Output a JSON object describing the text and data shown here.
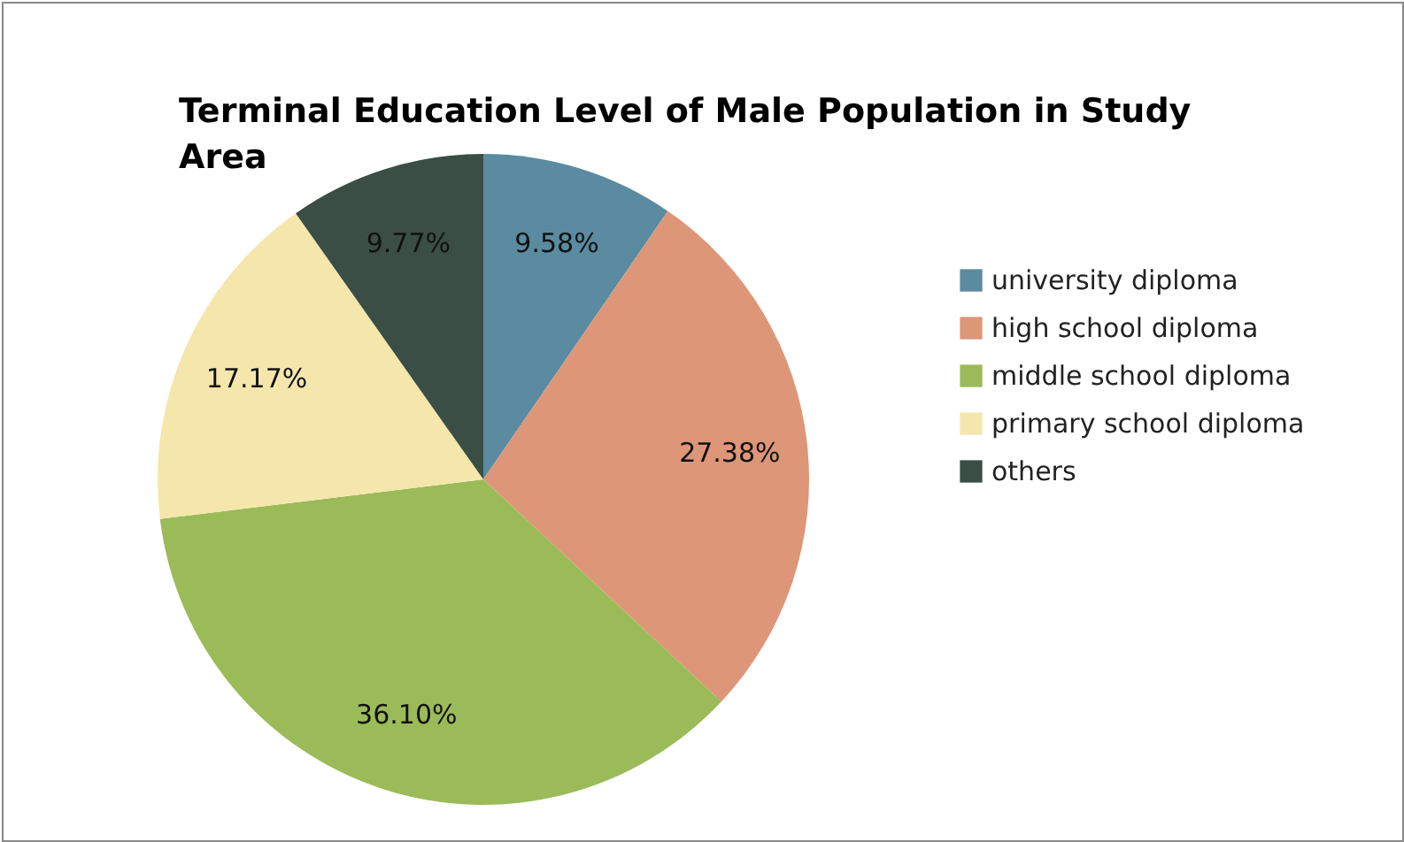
{
  "chart_data": {
    "type": "pie",
    "title": "Terminal Education Level of Male Population in Study Area",
    "categories": [
      "university diploma",
      "high school diploma",
      "middle school diploma",
      "primary school diploma",
      "others"
    ],
    "values": [
      9.58,
      27.38,
      36.1,
      17.17,
      9.77
    ],
    "value_labels": [
      "9.58%",
      "27.38%",
      "36.10%",
      "17.17%",
      "9.77%"
    ],
    "colors": [
      "#5a8ba0",
      "#dd9678",
      "#9bbb59",
      "#f5e6ac",
      "#3a4e45"
    ],
    "legend": "right"
  }
}
